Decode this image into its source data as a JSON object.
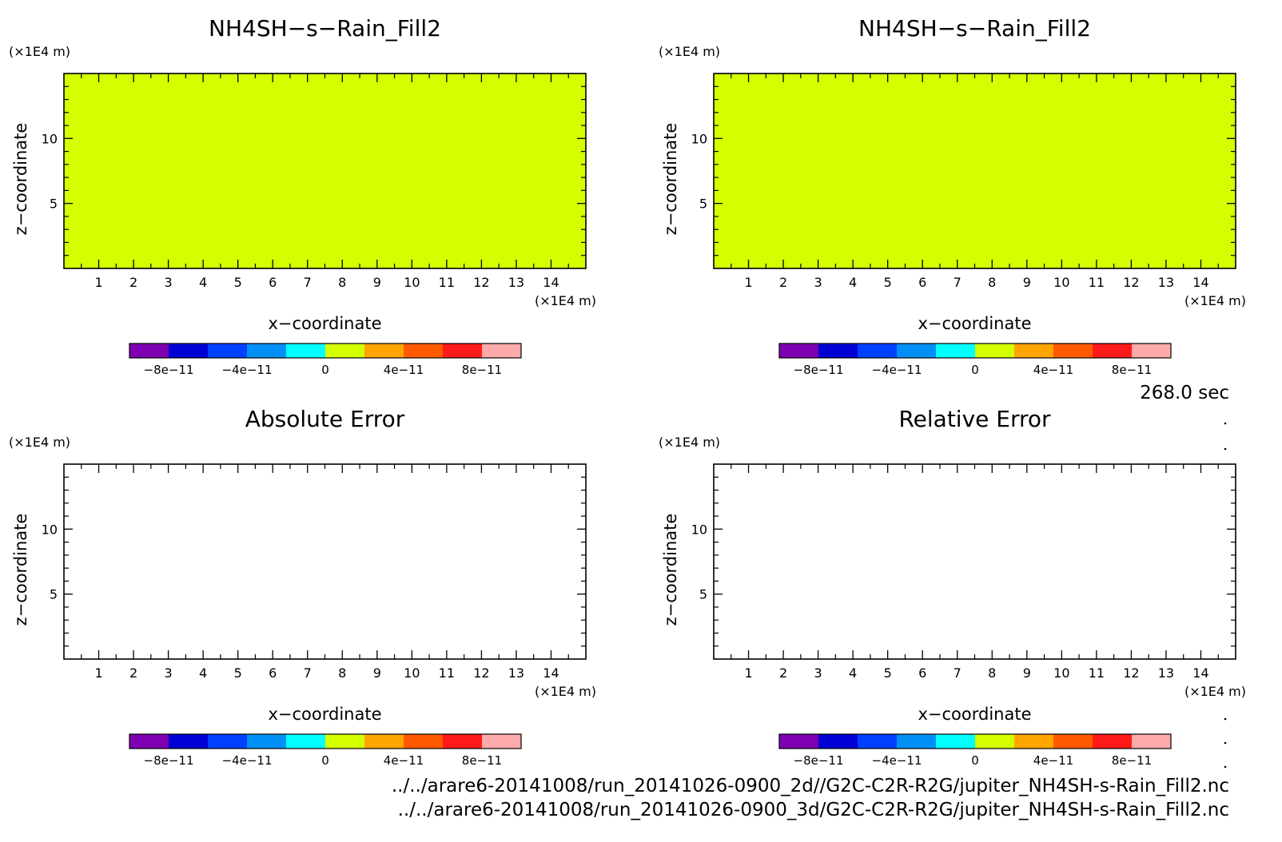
{
  "time_label": "268.0 sec",
  "file_paths": [
    "../../arare6-20141008/run_20141026-0900_2d//G2C-C2R-R2G/jupiter_NH4SH-s-Rain_Fill2.nc",
    "../../arare6-20141008/run_20141026-0900_3d/G2C-C2R-R2G/jupiter_NH4SH-s-Rain_Fill2.nc"
  ],
  "chart_data": [
    {
      "type": "heatmap",
      "title": "NH4SH−s−Rain_Fill2",
      "xlabel": "x−coordinate",
      "ylabel": "z−coordinate",
      "x_unit": "(×1E4 m)",
      "y_unit": "(×1E4 m)",
      "xlim": [
        0,
        15
      ],
      "ylim": [
        0,
        15
      ],
      "x_ticks": [
        1,
        2,
        3,
        4,
        5,
        6,
        7,
        8,
        9,
        10,
        11,
        12,
        13,
        14
      ],
      "y_ticks": [
        5,
        10
      ],
      "field_value": 0,
      "field_color": "#d4ff00",
      "colorbar": {
        "range": [
          -1e-10,
          1e-10
        ],
        "tick_values": [
          -8e-11,
          -4e-11,
          0,
          4e-11,
          8e-11
        ],
        "tick_labels": [
          "−8e−11",
          "−4e−11",
          "0",
          "4e−11",
          "8e−11"
        ],
        "colors": [
          "#7f00b2",
          "#0000d4",
          "#0040ff",
          "#0090f5",
          "#00ffff",
          "#d4ff00",
          "#ffa500",
          "#ff5a00",
          "#ff1a1a",
          "#ffaaaa"
        ]
      }
    },
    {
      "type": "heatmap",
      "title": "NH4SH−s−Rain_Fill2",
      "xlabel": "x−coordinate",
      "ylabel": "z−coordinate",
      "x_unit": "(×1E4 m)",
      "y_unit": "(×1E4 m)",
      "xlim": [
        0,
        15
      ],
      "ylim": [
        0,
        15
      ],
      "x_ticks": [
        1,
        2,
        3,
        4,
        5,
        6,
        7,
        8,
        9,
        10,
        11,
        12,
        13,
        14
      ],
      "y_ticks": [
        5,
        10
      ],
      "field_value": 0,
      "field_color": "#d4ff00",
      "colorbar": {
        "range": [
          -1e-10,
          1e-10
        ],
        "tick_values": [
          -8e-11,
          -4e-11,
          0,
          4e-11,
          8e-11
        ],
        "tick_labels": [
          "−8e−11",
          "−4e−11",
          "0",
          "4e−11",
          "8e−11"
        ],
        "colors": [
          "#7f00b2",
          "#0000d4",
          "#0040ff",
          "#0090f5",
          "#00ffff",
          "#d4ff00",
          "#ffa500",
          "#ff5a00",
          "#ff1a1a",
          "#ffaaaa"
        ]
      }
    },
    {
      "type": "heatmap",
      "title": "Absolute Error",
      "xlabel": "x−coordinate",
      "ylabel": "z−coordinate",
      "x_unit": "(×1E4 m)",
      "y_unit": "(×1E4 m)",
      "xlim": [
        0,
        15
      ],
      "ylim": [
        0,
        15
      ],
      "x_ticks": [
        1,
        2,
        3,
        4,
        5,
        6,
        7,
        8,
        9,
        10,
        11,
        12,
        13,
        14
      ],
      "y_ticks": [
        5,
        10
      ],
      "field_value": null,
      "field_color": "#ffffff",
      "colorbar": {
        "range": [
          -1e-10,
          1e-10
        ],
        "tick_values": [
          -8e-11,
          -4e-11,
          0,
          4e-11,
          8e-11
        ],
        "tick_labels": [
          "−8e−11",
          "−4e−11",
          "0",
          "4e−11",
          "8e−11"
        ],
        "colors": [
          "#7f00b2",
          "#0000d4",
          "#0040ff",
          "#0090f5",
          "#00ffff",
          "#d4ff00",
          "#ffa500",
          "#ff5a00",
          "#ff1a1a",
          "#ffaaaa"
        ]
      }
    },
    {
      "type": "heatmap",
      "title": "Relative Error",
      "xlabel": "x−coordinate",
      "ylabel": "z−coordinate",
      "x_unit": "(×1E4 m)",
      "y_unit": "(×1E4 m)",
      "xlim": [
        0,
        15
      ],
      "ylim": [
        0,
        15
      ],
      "x_ticks": [
        1,
        2,
        3,
        4,
        5,
        6,
        7,
        8,
        9,
        10,
        11,
        12,
        13,
        14
      ],
      "y_ticks": [
        5,
        10
      ],
      "field_value": null,
      "field_color": "#ffffff",
      "colorbar": {
        "range": [
          -1e-10,
          1e-10
        ],
        "tick_values": [
          -8e-11,
          -4e-11,
          0,
          4e-11,
          8e-11
        ],
        "tick_labels": [
          "−8e−11",
          "−4e−11",
          "0",
          "4e−11",
          "8e−11"
        ],
        "colors": [
          "#7f00b2",
          "#0000d4",
          "#0040ff",
          "#0090f5",
          "#00ffff",
          "#d4ff00",
          "#ffa500",
          "#ff5a00",
          "#ff1a1a",
          "#ffaaaa"
        ]
      }
    }
  ]
}
